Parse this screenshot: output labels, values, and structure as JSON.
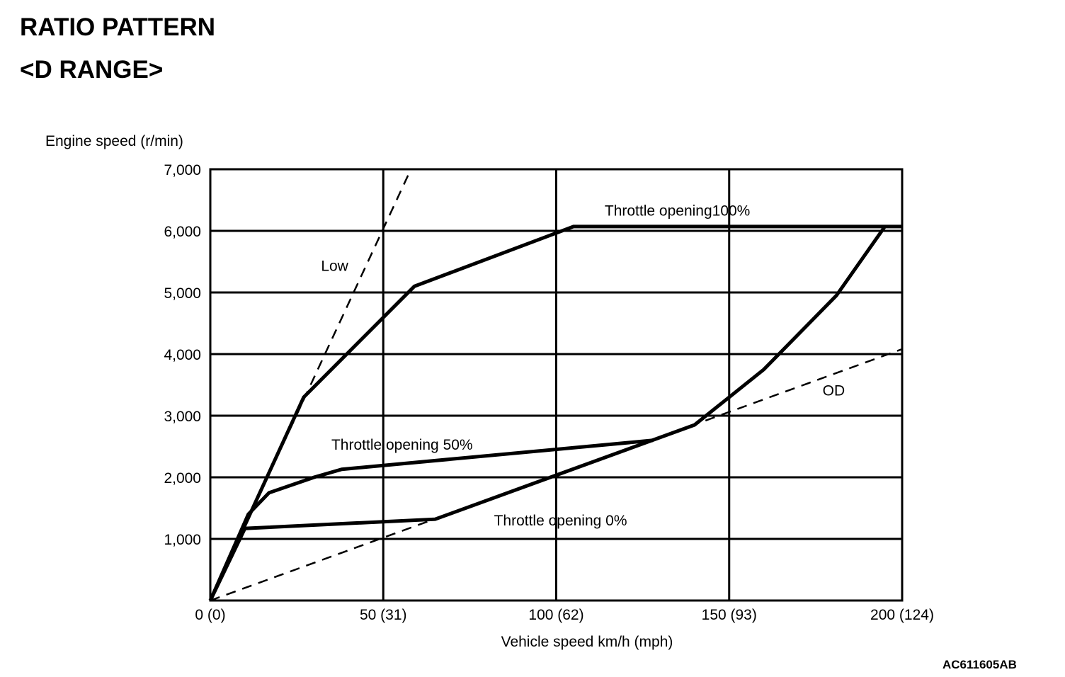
{
  "header": {
    "title": "RATIO PATTERN",
    "subtitle": "<D RANGE>"
  },
  "figure_code": "AC611605AB",
  "chart_data": {
    "type": "line",
    "title": "RATIO PATTERN",
    "subtitle": "<D RANGE>",
    "xlabel": "Vehicle speed  km/h (mph)",
    "ylabel": "Engine speed (r/min)",
    "xlim": [
      0,
      200
    ],
    "ylim": [
      0,
      7000
    ],
    "grid": true,
    "x_ticks": [
      {
        "value": 0,
        "label": "0 (0)"
      },
      {
        "value": 50,
        "label": "50 (31)"
      },
      {
        "value": 100,
        "label": "100 (62)"
      },
      {
        "value": 150,
        "label": "150 (93)"
      },
      {
        "value": 200,
        "label": "200 (124)"
      }
    ],
    "y_ticks": [
      {
        "value": 1000,
        "label": "1,000"
      },
      {
        "value": 2000,
        "label": "2,000"
      },
      {
        "value": 3000,
        "label": "3,000"
      },
      {
        "value": 4000,
        "label": "4,000"
      },
      {
        "value": 5000,
        "label": "5,000"
      },
      {
        "value": 6000,
        "label": "6,000"
      },
      {
        "value": 7000,
        "label": "7,000"
      }
    ],
    "series": [
      {
        "name": "Throttle opening100%",
        "style": "solid",
        "points": [
          [
            0,
            0
          ],
          [
            27,
            3300
          ],
          [
            59,
            5100
          ],
          [
            105,
            6070
          ],
          [
            200,
            6070
          ]
        ]
      },
      {
        "name": "Throttle opening 50%",
        "style": "solid",
        "points": [
          [
            0,
            0
          ],
          [
            11,
            1400
          ],
          [
            17,
            1750
          ],
          [
            30,
            2000
          ],
          [
            38,
            2130
          ],
          [
            128,
            2600
          ]
        ]
      },
      {
        "name": "Throttle opening 0%",
        "style": "solid",
        "points": [
          [
            0,
            0
          ],
          [
            10,
            1170
          ],
          [
            65,
            1320
          ],
          [
            140,
            2850
          ],
          [
            160,
            3750
          ],
          [
            181,
            4950
          ],
          [
            195,
            6070
          ]
        ]
      },
      {
        "name": "Low",
        "style": "dashed",
        "points": [
          [
            0,
            0
          ],
          [
            58,
            7000
          ]
        ]
      },
      {
        "name": "OD",
        "style": "dashed",
        "points": [
          [
            0,
            0
          ],
          [
            200,
            4080
          ]
        ]
      }
    ],
    "annotations": [
      {
        "text": "Throttle opening100%",
        "x": 114,
        "y": 6250
      },
      {
        "text": "Low",
        "x": 32,
        "y": 5350
      },
      {
        "text": "Throttle opening 50%",
        "x": 35,
        "y": 2450
      },
      {
        "text": "Throttle opening 0%",
        "x": 82,
        "y": 1220
      },
      {
        "text": "OD",
        "x": 177,
        "y": 3330
      }
    ]
  }
}
